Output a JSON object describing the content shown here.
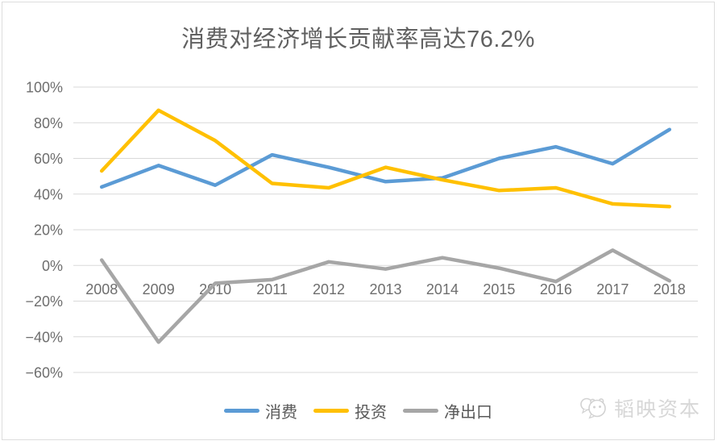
{
  "chart_data": {
    "type": "line",
    "title": "消费对经济增长贡献率高达76.2%",
    "categories": [
      "2008",
      "2009",
      "2010",
      "2011",
      "2012",
      "2013",
      "2014",
      "2015",
      "2016",
      "2017",
      "2018"
    ],
    "series": [
      {
        "name": "消费",
        "color": "#5B9BD5",
        "values": [
          44,
          56,
          45,
          62,
          55,
          47,
          49,
          60,
          66.5,
          57,
          76.2
        ]
      },
      {
        "name": "投资",
        "color": "#FFC000",
        "values": [
          53,
          87,
          70,
          46,
          43.5,
          55,
          48,
          42,
          43.5,
          34.5,
          33
        ]
      },
      {
        "name": "净出口",
        "color": "#A6A6A6",
        "values": [
          3,
          -43,
          -10,
          -8,
          2,
          -2,
          4.3,
          -1.5,
          -9,
          8.5,
          -8.6
        ]
      }
    ],
    "ylim": [
      -60,
      100
    ],
    "ytick_step": 20,
    "ytick_labels": [
      "100%",
      "80%",
      "60%",
      "40%",
      "20%",
      "0%",
      "−20%",
      "−40%",
      "−60%"
    ],
    "grid": true,
    "legend_position": "bottom"
  },
  "colors": {
    "grid": "#d9d9d9",
    "axis_text": "#6e6e6e",
    "title_text": "#616161",
    "card_border": "#dddddd",
    "watermark": "#d7d7d7"
  },
  "watermark": {
    "text": "韬映资本"
  }
}
